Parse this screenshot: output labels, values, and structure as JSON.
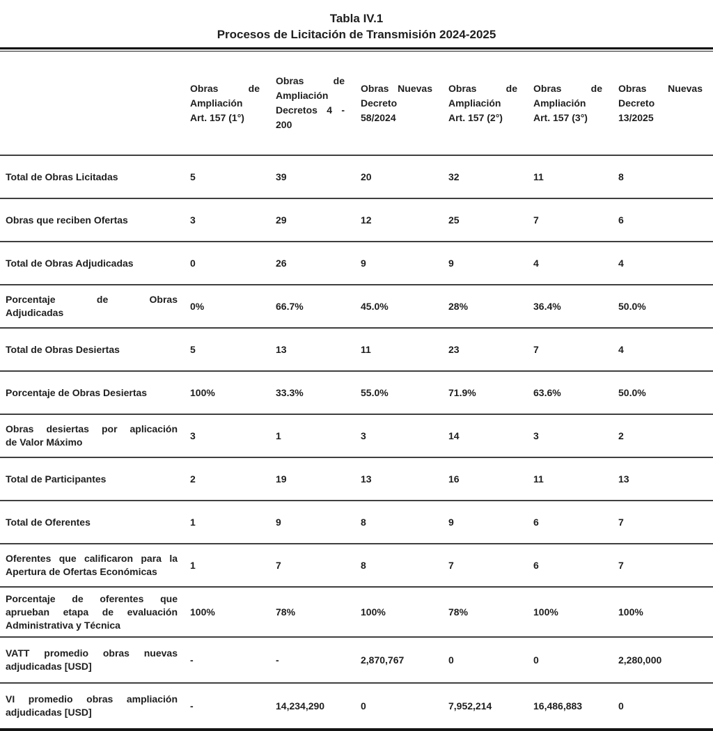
{
  "page": {
    "title": "Tabla IV.1",
    "subtitle": "Procesos de Licitación de Transmisión 2024-2025"
  },
  "colors": {
    "text": "#1e1e1e",
    "title_rule": "#000000",
    "row_separator": "#3f3f3f",
    "bottom_rule": "#141414"
  },
  "table": {
    "columns": [
      {
        "title": "Obras de Ampliación Art. 157 (1°)",
        "lines": [
          "Obras de",
          "Ampliación",
          "Art. 157 (1°)"
        ]
      },
      {
        "title": "Obras de Ampliación Decretos 4 - 200",
        "lines": [
          "Obras de",
          "Ampliación",
          "Decretos 4 -",
          "200"
        ]
      },
      {
        "title": "Obras Nuevas Decreto 58/2024",
        "lines": [
          "Obras Nuevas",
          "Decreto",
          "58/2024"
        ]
      },
      {
        "title": "Obras de Ampliación Art. 157 (2°)",
        "lines": [
          "Obras de",
          "Ampliación",
          "Art. 157 (2°)"
        ]
      },
      {
        "title": "Obras de Ampliación Art. 157 (3°)",
        "lines": [
          "Obras de",
          "Ampliación",
          "Art. 157 (3°)"
        ]
      },
      {
        "title": "Obras Nuevas Decreto 13/2025",
        "lines": [
          "Obras Nuevas",
          "Decreto",
          "13/2025"
        ]
      }
    ],
    "rows": [
      {
        "label": "Total de Obras Licitadas",
        "lines": [
          "Total de Obras Licitadas"
        ],
        "values": [
          "5",
          "39",
          "20",
          "32",
          "11",
          "8"
        ]
      },
      {
        "label": "Obras que reciben Ofertas",
        "lines": [
          "Obras que reciben Ofertas"
        ],
        "values": [
          "3",
          "29",
          "12",
          "25",
          "7",
          "6"
        ]
      },
      {
        "label": "Total de Obras Adjudicadas",
        "lines": [
          "Total de Obras Adjudicadas"
        ],
        "values": [
          "0",
          "26",
          "9",
          "9",
          "4",
          "4"
        ]
      },
      {
        "label": "Porcentaje de Obras Adjudicadas",
        "lines": [
          "Porcentaje de Obras",
          "Adjudicadas"
        ],
        "values": [
          "0%",
          "66.7%",
          "45.0%",
          "28%",
          "36.4%",
          "50.0%"
        ]
      },
      {
        "label": "Total de Obras Desiertas",
        "lines": [
          "Total de Obras Desiertas"
        ],
        "values": [
          "5",
          "13",
          "11",
          "23",
          "7",
          "4"
        ]
      },
      {
        "label": "Porcentaje de Obras Desiertas",
        "lines": [
          "Porcentaje de Obras Desiertas"
        ],
        "values": [
          "100%",
          "33.3%",
          "55.0%",
          "71.9%",
          "63.6%",
          "50.0%"
        ]
      },
      {
        "label": "Obras desiertas por aplicación de Valor Máximo",
        "lines": [
          "Obras desiertas por aplicación",
          "de Valor Máximo"
        ],
        "values": [
          "3",
          "1",
          "3",
          "14",
          "3",
          "2"
        ]
      },
      {
        "label": "Total de Participantes",
        "lines": [
          "Total de Participantes"
        ],
        "values": [
          "2",
          "19",
          "13",
          "16",
          "11",
          "13"
        ]
      },
      {
        "label": "Total de Oferentes",
        "lines": [
          "Total de Oferentes"
        ],
        "values": [
          "1",
          "9",
          "8",
          "9",
          "6",
          "7"
        ]
      },
      {
        "label": "Oferentes que calificaron para la Apertura de Ofertas Económicas",
        "lines": [
          "Oferentes que calificaron para la",
          "Apertura de Ofertas Económicas"
        ],
        "values": [
          "1",
          "7",
          "8",
          "7",
          "6",
          "7"
        ]
      },
      {
        "label": "Porcentaje de oferentes que aprueban etapa de evaluación Administrativa y Técnica",
        "lines": [
          "Porcentaje de oferentes que",
          "aprueban etapa de evaluación",
          "Administrativa y Técnica"
        ],
        "values": [
          "100%",
          "78%",
          "100%",
          "78%",
          "100%",
          "100%"
        ]
      },
      {
        "label": "VATT promedio obras nuevas adjudicadas [USD]",
        "lines": [
          "VATT promedio obras nuevas",
          "adjudicadas [USD]"
        ],
        "values": [
          "-",
          "-",
          "2,870,767",
          "0",
          "0",
          "2,280,000"
        ]
      },
      {
        "label": "VI promedio obras ampliación adjudicadas [USD]",
        "lines": [
          "VI promedio obras ampliación",
          "adjudicadas [USD]"
        ],
        "values": [
          "-",
          "14,234,290",
          "0",
          "7,952,214",
          "16,486,883",
          "0"
        ]
      }
    ]
  }
}
